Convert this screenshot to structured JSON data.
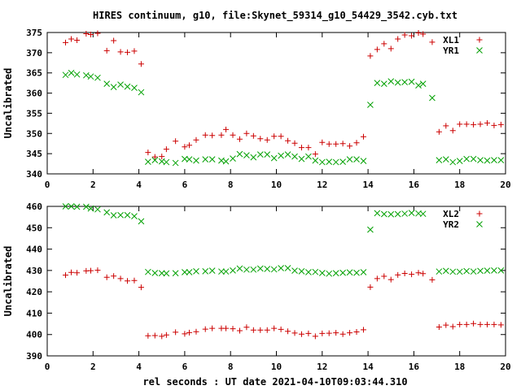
{
  "title": "HIRES continuum, g10, file:Skynet_59314_g10_54429_3542.cyb.txt",
  "xlabel": "rel seconds : UT date 2021-04-10T09:03:44.310",
  "colors": {
    "red": "#cc0000",
    "green": "#00a000",
    "axis": "#000000"
  },
  "chart_data": [
    {
      "type": "scatter",
      "ylabel": "Uncalibrated",
      "xlim": [
        0,
        20
      ],
      "ylim": [
        340,
        375
      ],
      "xticks": [
        "0",
        "2",
        "4",
        "6",
        "8",
        "10",
        "12",
        "14",
        "16",
        "18",
        "20"
      ],
      "yticks": [
        "340",
        "345",
        "350",
        "355",
        "360",
        "365",
        "370",
        "375"
      ],
      "legend": "top-right",
      "series": [
        {
          "name": "XL1",
          "marker": "plus",
          "color": "#cc0000",
          "x": [
            0.8,
            1.05,
            1.3,
            1.7,
            1.9,
            2.2,
            2.6,
            2.9,
            3.2,
            3.5,
            3.8,
            4.1,
            4.4,
            4.7,
            5.0,
            5.2,
            5.6,
            6.0,
            6.2,
            6.5,
            6.9,
            7.2,
            7.6,
            7.8,
            8.1,
            8.4,
            8.7,
            9.0,
            9.3,
            9.6,
            9.9,
            10.2,
            10.5,
            10.8,
            11.1,
            11.4,
            11.7,
            12.0,
            12.3,
            12.6,
            12.9,
            13.2,
            13.5,
            13.8,
            14.1,
            14.4,
            14.7,
            15.0,
            15.3,
            15.6,
            15.9,
            16.2,
            16.4,
            16.8,
            17.1,
            17.4,
            17.7,
            18.0,
            18.3,
            18.6,
            18.9,
            19.2,
            19.5,
            19.8
          ],
          "y": [
            372.5,
            373.4,
            373.1,
            374.7,
            374.5,
            374.8,
            370.5,
            373,
            370.2,
            370.1,
            370.4,
            367.2,
            345.3,
            344.2,
            344.3,
            346.1,
            348.1,
            346.7,
            347.1,
            348.4,
            349.6,
            349.5,
            349.6,
            351,
            349.6,
            348.6,
            350,
            349.4,
            348.7,
            348.4,
            349.3,
            349.3,
            348.2,
            347.6,
            346.5,
            346.5,
            344.9,
            347.8,
            347.4,
            347.4,
            347.5,
            346.9,
            347.7,
            349.2,
            369.2,
            370.8,
            372.2,
            371,
            373.4,
            374.4,
            374.2,
            374.9,
            374.6,
            372.6,
            350.4,
            351.9,
            350.7,
            352.3,
            352.3,
            352.2,
            352.3,
            352.6,
            352,
            352.2
          ]
        },
        {
          "name": "YR1",
          "marker": "cross",
          "color": "#00a000",
          "x": [
            0.8,
            1.05,
            1.3,
            1.7,
            1.9,
            2.2,
            2.6,
            2.9,
            3.2,
            3.5,
            3.8,
            4.1,
            4.4,
            4.7,
            5.0,
            5.2,
            5.6,
            6.0,
            6.2,
            6.5,
            6.9,
            7.2,
            7.6,
            7.8,
            8.1,
            8.4,
            8.7,
            9.0,
            9.3,
            9.6,
            9.9,
            10.2,
            10.5,
            10.8,
            11.1,
            11.4,
            11.7,
            12.0,
            12.3,
            12.6,
            12.9,
            13.2,
            13.5,
            13.8,
            14.1,
            14.4,
            14.7,
            15.0,
            15.3,
            15.6,
            15.9,
            16.2,
            16.4,
            16.8,
            17.1,
            17.4,
            17.7,
            18.0,
            18.3,
            18.6,
            18.9,
            19.2,
            19.5,
            19.8
          ],
          "y": [
            364.5,
            365,
            364.6,
            364.4,
            364.1,
            363.8,
            362.3,
            361.5,
            362.1,
            361.6,
            361.3,
            360.2,
            343,
            343.4,
            343.1,
            342.9,
            342.7,
            343.7,
            343.6,
            343.3,
            343.6,
            343.6,
            343.3,
            343.1,
            343.8,
            344.9,
            344.6,
            344.1,
            344.8,
            344.8,
            343.9,
            344.5,
            344.8,
            344.3,
            343.7,
            344.3,
            343.3,
            342.9,
            343,
            342.9,
            343,
            343.6,
            343.6,
            343.2,
            357.1,
            362.5,
            362.3,
            362.9,
            362.6,
            362.7,
            362.8,
            361.9,
            362.3,
            358.8,
            343.4,
            343.6,
            342.9,
            343.2,
            343.7,
            343.7,
            343.4,
            343.3,
            343.4,
            343.4
          ]
        }
      ]
    },
    {
      "type": "scatter",
      "ylabel": "Uncalibrated",
      "xlim": [
        0,
        20
      ],
      "ylim": [
        390,
        460
      ],
      "xticks": [
        "0",
        "2",
        "4",
        "6",
        "8",
        "10",
        "12",
        "14",
        "16",
        "18",
        "20"
      ],
      "yticks": [
        "390",
        "400",
        "410",
        "420",
        "430",
        "440",
        "450",
        "460"
      ],
      "legend": "top-right",
      "series": [
        {
          "name": "XL2",
          "marker": "plus",
          "color": "#cc0000",
          "x": [
            0.8,
            1.05,
            1.3,
            1.7,
            1.9,
            2.2,
            2.6,
            2.9,
            3.2,
            3.5,
            3.8,
            4.1,
            4.4,
            4.7,
            5.0,
            5.2,
            5.6,
            6.0,
            6.2,
            6.5,
            6.9,
            7.2,
            7.6,
            7.8,
            8.1,
            8.4,
            8.7,
            9.0,
            9.3,
            9.6,
            9.9,
            10.2,
            10.5,
            10.8,
            11.1,
            11.4,
            11.7,
            12.0,
            12.3,
            12.6,
            12.9,
            13.2,
            13.5,
            13.8,
            14.1,
            14.4,
            14.7,
            15.0,
            15.3,
            15.6,
            15.9,
            16.2,
            16.4,
            16.8,
            17.1,
            17.4,
            17.7,
            18.0,
            18.3,
            18.6,
            18.9,
            19.2,
            19.5,
            19.8
          ],
          "y": [
            427.8,
            429.1,
            428.9,
            429.8,
            429.9,
            430.1,
            426.8,
            427.4,
            426.2,
            425.1,
            425.3,
            422.1,
            399.4,
            399.5,
            399.2,
            399.8,
            401.1,
            400.3,
            400.9,
            401.3,
            402.5,
            402.9,
            402.9,
            402.9,
            402.7,
            401.8,
            403.4,
            402.1,
            402.1,
            402.1,
            402.9,
            402.4,
            401.5,
            400.7,
            400.2,
            400.5,
            399.2,
            400.5,
            400.6,
            400.8,
            400.2,
            400.8,
            401.2,
            402.2,
            422.2,
            426.2,
            427.3,
            425.7,
            427.9,
            428.6,
            428.2,
            428.9,
            428.5,
            425.6,
            403.5,
            404.4,
            403.7,
            404.7,
            404.7,
            405.1,
            404.7,
            404.7,
            404.7,
            404.5
          ]
        },
        {
          "name": "YR2",
          "marker": "cross",
          "color": "#00a000",
          "x": [
            0.8,
            1.05,
            1.3,
            1.7,
            1.9,
            2.2,
            2.6,
            2.9,
            3.2,
            3.5,
            3.8,
            4.1,
            4.4,
            4.7,
            5.0,
            5.2,
            5.6,
            6.0,
            6.2,
            6.5,
            6.9,
            7.2,
            7.6,
            7.8,
            8.1,
            8.4,
            8.7,
            9.0,
            9.3,
            9.6,
            9.9,
            10.2,
            10.5,
            10.8,
            11.1,
            11.4,
            11.7,
            12.0,
            12.3,
            12.6,
            12.9,
            13.2,
            13.5,
            13.8,
            14.1,
            14.4,
            14.7,
            15.0,
            15.3,
            15.6,
            15.9,
            16.2,
            16.4,
            16.8,
            17.1,
            17.4,
            17.7,
            18.0,
            18.3,
            18.6,
            18.9,
            19.2,
            19.5,
            19.8
          ],
          "y": [
            460,
            460,
            459.8,
            459.8,
            459,
            458.6,
            457.2,
            455.8,
            455.9,
            455.9,
            455.4,
            453,
            429.3,
            428.8,
            428.7,
            428.6,
            428.7,
            429.2,
            429.2,
            429.6,
            429.6,
            429.9,
            429.5,
            429.5,
            430,
            430.9,
            430.4,
            430.4,
            430.9,
            430.7,
            430.5,
            431.1,
            431.1,
            429.9,
            429.6,
            429.2,
            429.3,
            428.8,
            428.5,
            428.7,
            428.9,
            429.1,
            428.9,
            429.2,
            449.1,
            456.8,
            456.4,
            456.3,
            456.4,
            456.6,
            456.9,
            456.7,
            456.5,
            null,
            429.5,
            429.8,
            429.4,
            429.4,
            429.7,
            429.5,
            429.8,
            429.9,
            430,
            430
          ]
        }
      ]
    }
  ]
}
